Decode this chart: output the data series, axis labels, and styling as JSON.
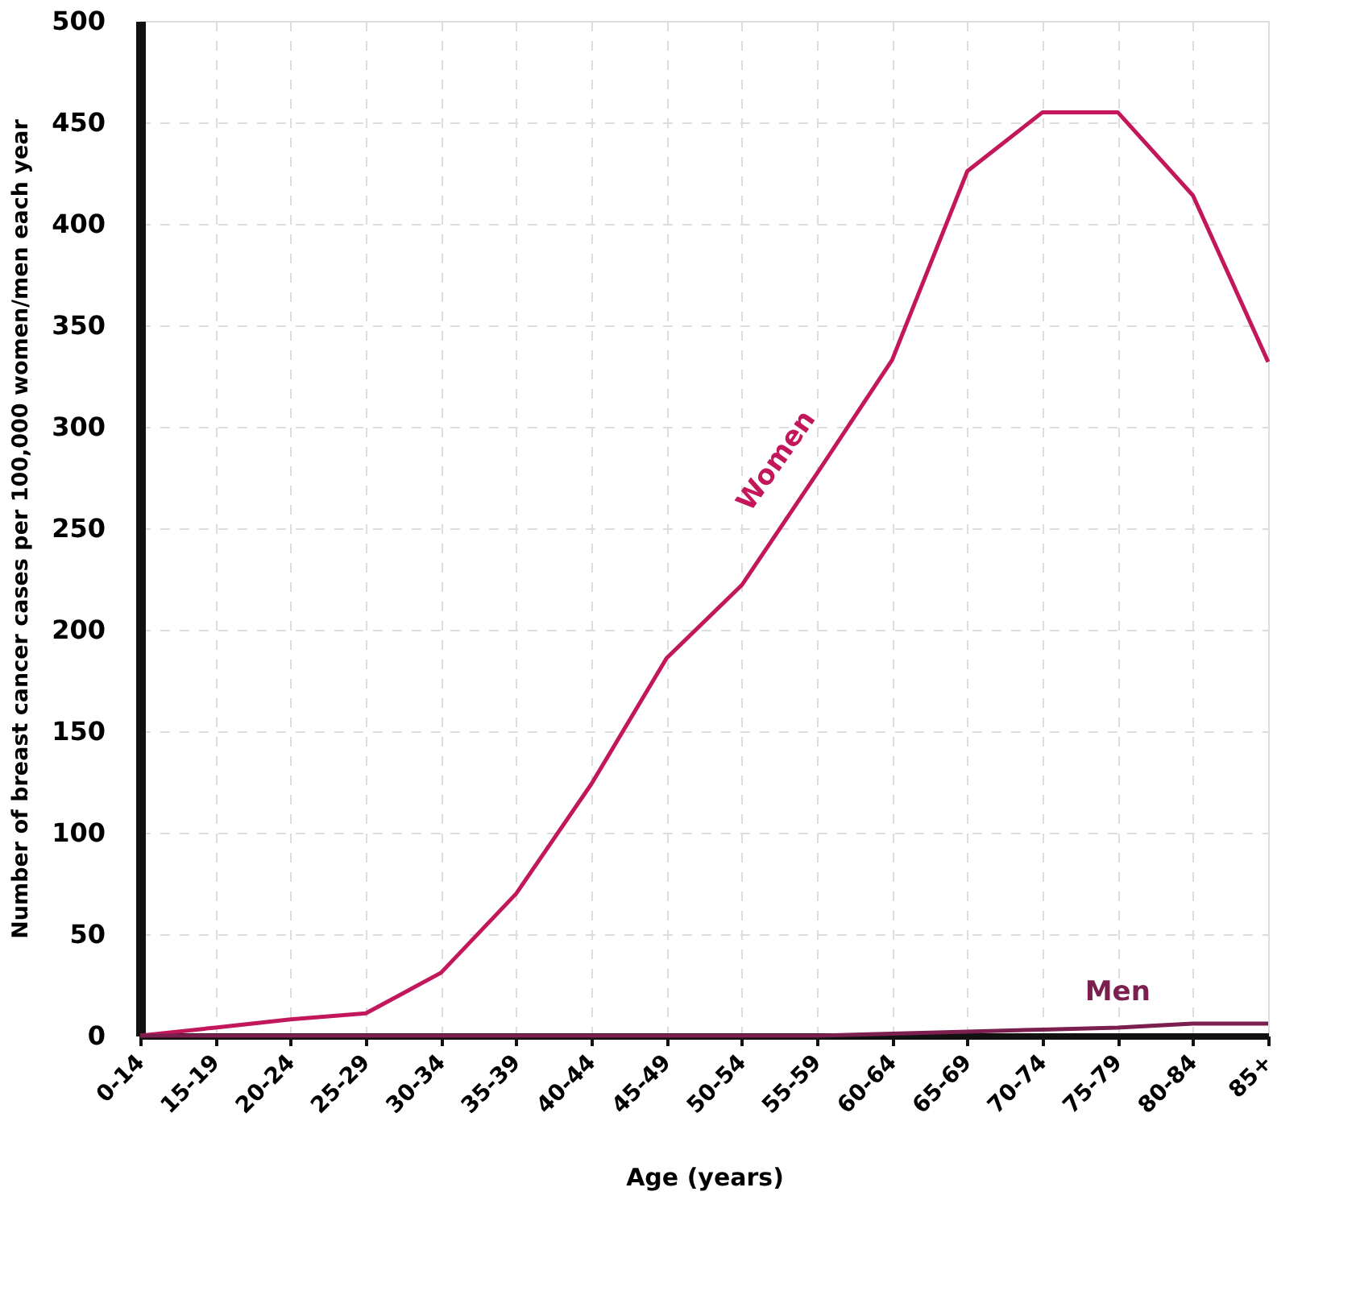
{
  "chart_data": {
    "type": "line",
    "xlabel": "Age (years)",
    "ylabel": "Number of breast cancer cases per 100,000 women/men each year",
    "categories": [
      "0-14",
      "15-19",
      "20-24",
      "25-29",
      "30-34",
      "35-39",
      "40-44",
      "45-49",
      "50-54",
      "55-59",
      "60-64",
      "65-69",
      "70-74",
      "75-79",
      "80-84",
      "85+"
    ],
    "series": [
      {
        "name": "Women",
        "color": "#c2185b",
        "values": [
          0,
          4,
          8,
          11,
          31,
          70,
          124,
          186,
          222,
          277,
          333,
          426,
          455,
          455,
          414,
          332
        ]
      },
      {
        "name": "Men",
        "color": "#7b1f4e",
        "values": [
          0,
          0,
          0,
          0,
          0,
          0,
          0,
          0,
          0,
          0,
          1,
          2,
          3,
          4,
          6,
          6
        ]
      }
    ],
    "ylim": [
      0,
      500
    ],
    "yticks": [
      0,
      50,
      100,
      150,
      200,
      250,
      300,
      350,
      400,
      450,
      500
    ],
    "grid": true,
    "marker": "none",
    "line_style": "solid"
  }
}
